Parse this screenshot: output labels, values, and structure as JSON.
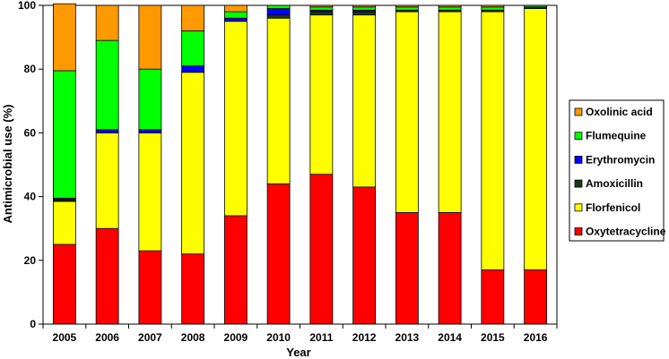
{
  "chart_data": {
    "type": "bar",
    "stacked": true,
    "title": "",
    "xlabel": "Year",
    "ylabel": "Antimicrobial use (%)",
    "ylim": [
      0,
      100
    ],
    "yticks": [
      0,
      20,
      40,
      60,
      80,
      100
    ],
    "grid": false,
    "legend_position": "right",
    "categories": [
      "2005",
      "2006",
      "2007",
      "2008",
      "2009",
      "2010",
      "2011",
      "2012",
      "2013",
      "2014",
      "2015",
      "2016"
    ],
    "series": [
      {
        "name": "Oxytetracycline",
        "color": "#FF0000",
        "values": [
          25,
          30,
          23,
          22,
          34,
          44,
          47,
          43,
          35,
          35,
          17,
          17
        ]
      },
      {
        "name": "Florfenicol",
        "color": "#FFFF00",
        "values": [
          13.5,
          30,
          37,
          57,
          61,
          52,
          50,
          54,
          63,
          63,
          81,
          82
        ]
      },
      {
        "name": "Amoxicillin",
        "color": "#1A3A1A",
        "values": [
          0.5,
          0,
          0,
          0,
          0,
          1,
          1,
          1,
          0.5,
          0.5,
          0.5,
          0.5
        ]
      },
      {
        "name": "Erythromycin",
        "color": "#0000FF",
        "values": [
          0.5,
          1,
          1,
          2,
          1,
          2,
          0.5,
          0.5,
          0,
          0,
          0,
          0
        ]
      },
      {
        "name": "Flumequine",
        "color": "#00FF00",
        "values": [
          40,
          28,
          19,
          11,
          2,
          1,
          1,
          1,
          1,
          1,
          1,
          0.5
        ]
      },
      {
        "name": "Oxolinic acid",
        "color": "#FF9900",
        "values": [
          21,
          11,
          20,
          8,
          2,
          0,
          0.5,
          0.5,
          0.5,
          0.5,
          0.5,
          0
        ]
      }
    ]
  }
}
